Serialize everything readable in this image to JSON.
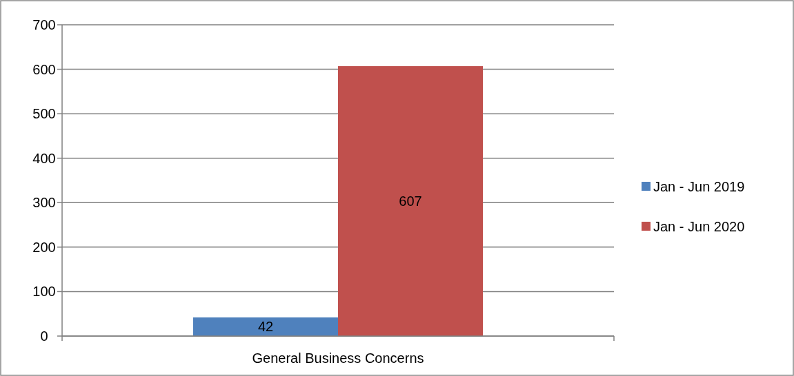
{
  "chart_data": {
    "type": "bar",
    "categories": [
      "General Business Concerns"
    ],
    "series": [
      {
        "name": "Jan - Jun 2019",
        "color": "#4f81bd",
        "values": [
          42
        ]
      },
      {
        "name": "Jan - Jun 2020",
        "color": "#c0504d",
        "values": [
          607
        ]
      }
    ],
    "ylim": [
      0,
      700
    ],
    "yticks": [
      0,
      100,
      200,
      300,
      400,
      500,
      600,
      700
    ],
    "grid": "y",
    "legend": "right",
    "data_labels": true
  }
}
